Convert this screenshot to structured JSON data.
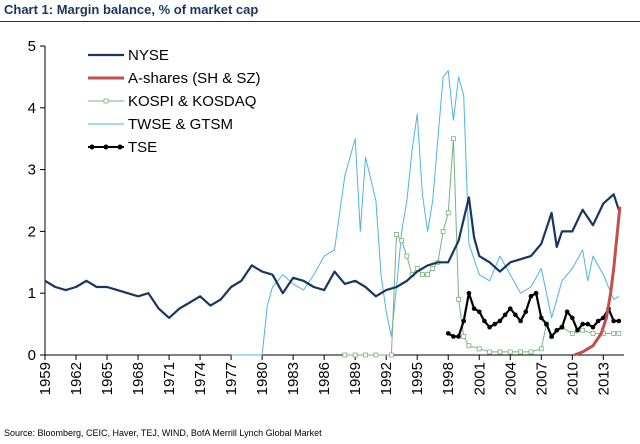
{
  "chart_title": "Chart 1: Margin balance, % of market cap",
  "source": "Source: Bloomberg, CEIC, Haver, TEJ, WIND, BofA Merrill Lynch Global Market",
  "chart_data": {
    "type": "line",
    "title": "Chart 1: Margin balance, % of market cap",
    "xlabel": "",
    "ylabel": "",
    "xlim": [
      1959,
      2015
    ],
    "ylim": [
      0,
      5
    ],
    "yticks": [
      "0",
      "1",
      "2",
      "3",
      "4",
      "5"
    ],
    "xticks": [
      "1959",
      "1962",
      "1965",
      "1968",
      "1971",
      "1974",
      "1977",
      "1980",
      "1983",
      "1986",
      "1989",
      "1992",
      "1995",
      "1998",
      "2001",
      "2004",
      "2007",
      "2010",
      "2013"
    ],
    "grid": false,
    "legend": "top-left",
    "series": [
      {
        "name": "NYSE",
        "color": "#17375E",
        "style": "line-thick",
        "points": [
          [
            1959.0,
            1.2
          ],
          [
            1960.0,
            1.1
          ],
          [
            1961.0,
            1.05
          ],
          [
            1962.0,
            1.1
          ],
          [
            1963.0,
            1.2
          ],
          [
            1964.0,
            1.1
          ],
          [
            1965.0,
            1.1
          ],
          [
            1966.0,
            1.05
          ],
          [
            1967.0,
            1.0
          ],
          [
            1968.0,
            0.95
          ],
          [
            1969.0,
            1.0
          ],
          [
            1970.0,
            0.75
          ],
          [
            1971.0,
            0.6
          ],
          [
            1972.0,
            0.75
          ],
          [
            1973.0,
            0.85
          ],
          [
            1974.0,
            0.95
          ],
          [
            1975.0,
            0.8
          ],
          [
            1976.0,
            0.9
          ],
          [
            1977.0,
            1.1
          ],
          [
            1978.0,
            1.2
          ],
          [
            1979.0,
            1.45
          ],
          [
            1980.0,
            1.35
          ],
          [
            1981.0,
            1.3
          ],
          [
            1982.0,
            1.0
          ],
          [
            1983.0,
            1.25
          ],
          [
            1984.0,
            1.2
          ],
          [
            1985.0,
            1.1
          ],
          [
            1986.0,
            1.05
          ],
          [
            1987.0,
            1.35
          ],
          [
            1988.0,
            1.15
          ],
          [
            1989.0,
            1.2
          ],
          [
            1990.0,
            1.1
          ],
          [
            1991.0,
            0.95
          ],
          [
            1992.0,
            1.05
          ],
          [
            1993.0,
            1.1
          ],
          [
            1994.0,
            1.2
          ],
          [
            1995.0,
            1.35
          ],
          [
            1996.0,
            1.45
          ],
          [
            1997.0,
            1.5
          ],
          [
            1998.0,
            1.5
          ],
          [
            1999.0,
            1.85
          ],
          [
            2000.0,
            2.55
          ],
          [
            2000.5,
            1.9
          ],
          [
            2001.0,
            1.6
          ],
          [
            2002.0,
            1.5
          ],
          [
            2003.0,
            1.35
          ],
          [
            2004.0,
            1.5
          ],
          [
            2005.0,
            1.55
          ],
          [
            2006.0,
            1.6
          ],
          [
            2007.0,
            1.8
          ],
          [
            2008.0,
            2.3
          ],
          [
            2008.5,
            1.75
          ],
          [
            2009.0,
            2.0
          ],
          [
            2010.0,
            2.0
          ],
          [
            2011.0,
            2.35
          ],
          [
            2012.0,
            2.1
          ],
          [
            2013.0,
            2.45
          ],
          [
            2014.0,
            2.6
          ],
          [
            2014.5,
            2.35
          ]
        ]
      },
      {
        "name": "A-shares (SH & SZ)",
        "color": "#C0504D",
        "style": "line-thick",
        "points": [
          [
            2010.2,
            0.0
          ],
          [
            2011.0,
            0.05
          ],
          [
            2012.0,
            0.15
          ],
          [
            2012.8,
            0.35
          ],
          [
            2013.3,
            0.6
          ],
          [
            2013.7,
            1.0
          ],
          [
            2014.0,
            1.4
          ],
          [
            2014.3,
            1.9
          ],
          [
            2014.6,
            2.4
          ]
        ]
      },
      {
        "name": "KOSPI & KOSDAQ",
        "color": "#77B37A",
        "style": "square-markers",
        "points": [
          [
            1988.0,
            0.0
          ],
          [
            1989.0,
            0.0
          ],
          [
            1990.0,
            0.0
          ],
          [
            1991.0,
            0.0
          ],
          [
            1992.5,
            0.0
          ],
          [
            1993.0,
            1.95
          ],
          [
            1993.5,
            1.85
          ],
          [
            1994.0,
            1.6
          ],
          [
            1994.5,
            1.3
          ],
          [
            1995.0,
            1.4
          ],
          [
            1995.5,
            1.3
          ],
          [
            1996.0,
            1.3
          ],
          [
            1996.5,
            1.4
          ],
          [
            1997.0,
            1.5
          ],
          [
            1997.5,
            2.0
          ],
          [
            1998.0,
            2.3
          ],
          [
            1998.5,
            3.5
          ],
          [
            1999.0,
            0.9
          ],
          [
            1999.5,
            0.3
          ],
          [
            2000.0,
            0.15
          ],
          [
            2001.0,
            0.1
          ],
          [
            2002.0,
            0.05
          ],
          [
            2003.0,
            0.05
          ],
          [
            2004.0,
            0.05
          ],
          [
            2005.0,
            0.05
          ],
          [
            2006.0,
            0.05
          ],
          [
            2007.0,
            0.1
          ],
          [
            2007.5,
            0.5
          ],
          [
            2008.0,
            0.3
          ],
          [
            2009.0,
            0.45
          ],
          [
            2010.0,
            0.35
          ],
          [
            2011.0,
            0.4
          ],
          [
            2012.0,
            0.35
          ],
          [
            2013.0,
            0.35
          ],
          [
            2014.0,
            0.35
          ],
          [
            2014.5,
            0.35
          ]
        ]
      },
      {
        "name": "TWSE & GTSM",
        "color": "#4FB3E8",
        "style": "line-thin",
        "points": [
          [
            1977.0,
            0.0
          ],
          [
            1979.0,
            0.0
          ],
          [
            1980.0,
            0.0
          ],
          [
            1980.5,
            0.8
          ],
          [
            1981.0,
            1.1
          ],
          [
            1982.0,
            1.3
          ],
          [
            1983.0,
            1.15
          ],
          [
            1984.0,
            1.05
          ],
          [
            1985.0,
            1.3
          ],
          [
            1986.0,
            1.6
          ],
          [
            1987.0,
            1.7
          ],
          [
            1988.0,
            2.9
          ],
          [
            1989.0,
            3.5
          ],
          [
            1989.5,
            2.0
          ],
          [
            1990.0,
            3.2
          ],
          [
            1991.0,
            2.5
          ],
          [
            1991.5,
            1.3
          ],
          [
            1992.0,
            0.7
          ],
          [
            1992.5,
            0.3
          ],
          [
            1993.0,
            1.1
          ],
          [
            1993.5,
            2.0
          ],
          [
            1994.0,
            2.5
          ],
          [
            1994.5,
            3.3
          ],
          [
            1995.0,
            3.9
          ],
          [
            1995.5,
            2.6
          ],
          [
            1996.0,
            2.0
          ],
          [
            1996.5,
            2.5
          ],
          [
            1997.0,
            3.5
          ],
          [
            1997.5,
            4.5
          ],
          [
            1998.0,
            4.6
          ],
          [
            1998.5,
            3.8
          ],
          [
            1999.0,
            4.5
          ],
          [
            1999.5,
            4.2
          ],
          [
            2000.0,
            1.8
          ],
          [
            2001.0,
            1.3
          ],
          [
            2002.0,
            1.2
          ],
          [
            2003.0,
            1.6
          ],
          [
            2004.0,
            1.3
          ],
          [
            2005.0,
            1.0
          ],
          [
            2006.0,
            1.1
          ],
          [
            2007.0,
            1.4
          ],
          [
            2008.0,
            0.6
          ],
          [
            2009.0,
            1.2
          ],
          [
            2010.0,
            1.4
          ],
          [
            2011.0,
            1.7
          ],
          [
            2011.5,
            1.2
          ],
          [
            2012.0,
            1.6
          ],
          [
            2013.0,
            1.3
          ],
          [
            2013.5,
            1.1
          ],
          [
            2014.0,
            0.9
          ],
          [
            2014.5,
            0.95
          ]
        ]
      },
      {
        "name": "TSE",
        "color": "#000000",
        "style": "dot-markers",
        "points": [
          [
            1998.0,
            0.35
          ],
          [
            1998.5,
            0.3
          ],
          [
            1999.0,
            0.3
          ],
          [
            1999.5,
            0.55
          ],
          [
            2000.0,
            1.0
          ],
          [
            2000.5,
            0.75
          ],
          [
            2001.0,
            0.7
          ],
          [
            2001.5,
            0.55
          ],
          [
            2002.0,
            0.45
          ],
          [
            2002.5,
            0.5
          ],
          [
            2003.0,
            0.55
          ],
          [
            2003.5,
            0.65
          ],
          [
            2004.0,
            0.75
          ],
          [
            2004.5,
            0.65
          ],
          [
            2005.0,
            0.55
          ],
          [
            2005.5,
            0.7
          ],
          [
            2006.0,
            0.95
          ],
          [
            2006.5,
            1.0
          ],
          [
            2007.0,
            0.6
          ],
          [
            2007.5,
            0.5
          ],
          [
            2008.0,
            0.3
          ],
          [
            2008.5,
            0.4
          ],
          [
            2009.0,
            0.45
          ],
          [
            2009.5,
            0.7
          ],
          [
            2010.0,
            0.6
          ],
          [
            2010.5,
            0.4
          ],
          [
            2011.0,
            0.5
          ],
          [
            2011.5,
            0.5
          ],
          [
            2012.0,
            0.45
          ],
          [
            2012.5,
            0.55
          ],
          [
            2013.0,
            0.6
          ],
          [
            2013.5,
            0.75
          ],
          [
            2014.0,
            0.55
          ],
          [
            2014.5,
            0.55
          ]
        ]
      }
    ]
  }
}
